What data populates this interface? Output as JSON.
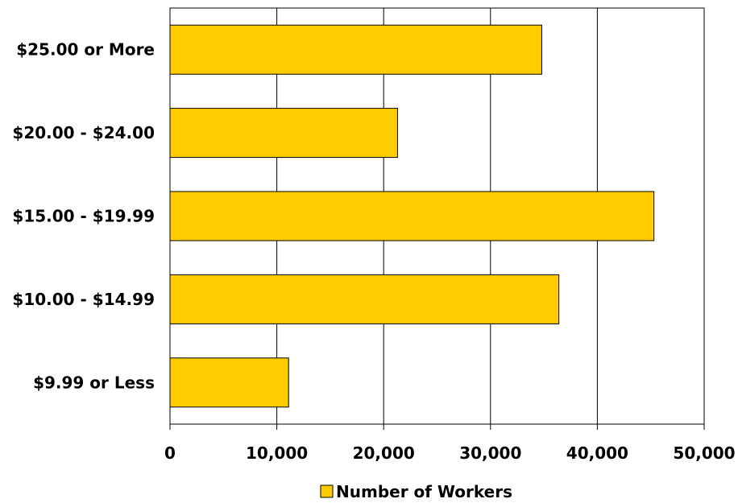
{
  "chart_data": {
    "type": "bar",
    "orientation": "horizontal",
    "categories": [
      "$25.00 or More",
      "$20.00 - $24.00",
      "$15.00 - $19.99",
      "$10.00 - $14.99",
      "$9.99 or Less"
    ],
    "series": [
      {
        "name": "Number of Workers",
        "values": [
          34800,
          21300,
          45300,
          36400,
          11100
        ],
        "color": "#FFCC00"
      }
    ],
    "xlim": [
      0,
      50000
    ],
    "xticks": [
      0,
      10000,
      20000,
      30000,
      40000,
      50000
    ],
    "xtick_labels": [
      "0",
      "10,000",
      "20,000",
      "30,000",
      "40,000",
      "50,000"
    ],
    "grid": true,
    "legend_position": "bottom"
  }
}
